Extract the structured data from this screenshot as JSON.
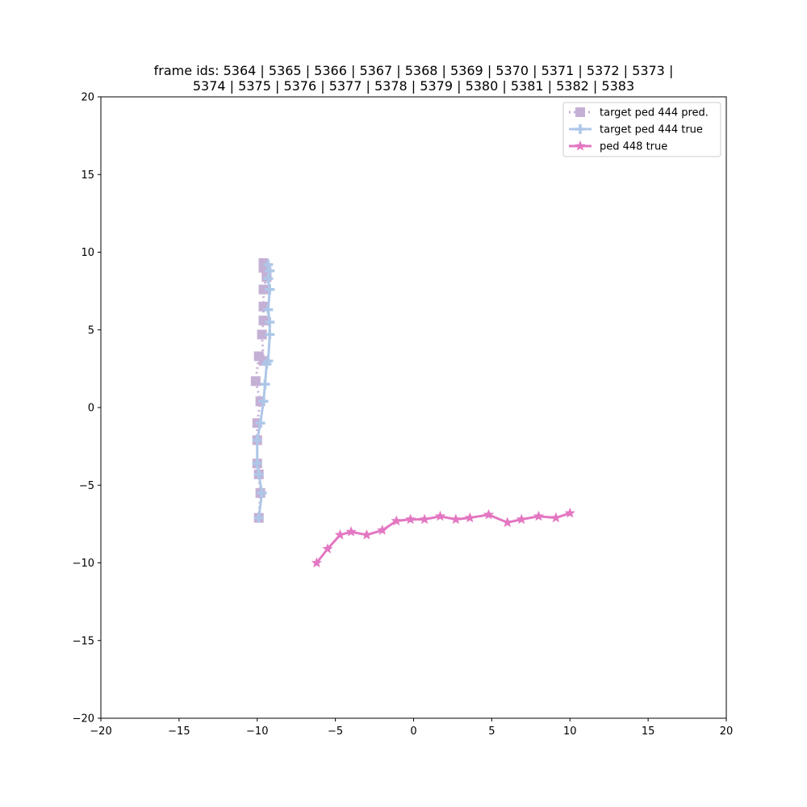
{
  "chart_data": {
    "type": "line",
    "title_lines": [
      "frame ids: 5364 | 5365 | 5366 | 5367 | 5368 | 5369 | 5370 | 5371 | 5372 | 5373 |",
      "5374 | 5375 | 5376 | 5377 | 5378 | 5379 | 5380 | 5381 | 5382 | 5383"
    ],
    "xlim": [
      -20,
      20
    ],
    "ylim": [
      -20,
      20
    ],
    "xticks": [
      -20,
      -15,
      -10,
      -5,
      0,
      5,
      10,
      15,
      20
    ],
    "yticks": [
      -20,
      -15,
      -10,
      -5,
      0,
      5,
      10,
      15,
      20
    ],
    "grid": false,
    "legend_position": "top-right",
    "series": [
      {
        "name": "target ped 444 pred.",
        "color": "#c5b0d5",
        "marker": "square",
        "linestyle": "dotted",
        "x": [
          -9.9,
          -9.8,
          -9.9,
          -10.0,
          -10.0,
          -10.0,
          -9.8,
          -10.1,
          -9.9,
          -9.6,
          -9.7,
          -9.6,
          -9.6,
          -9.6,
          -9.4,
          -9.4,
          -9.6,
          -9.6
        ],
        "y": [
          -7.1,
          -5.5,
          -4.3,
          -3.6,
          -2.1,
          -1.0,
          0.4,
          1.7,
          3.3,
          3.0,
          4.7,
          5.6,
          6.5,
          7.6,
          8.4,
          8.7,
          9.3,
          9.0
        ]
      },
      {
        "name": "target ped 444 true",
        "color": "#aec7e8",
        "marker": "plus",
        "linestyle": "solid",
        "x": [
          -9.9,
          -9.7,
          -9.9,
          -10.0,
          -10.0,
          -9.8,
          -9.6,
          -9.5,
          -9.4,
          -9.3,
          -9.2,
          -9.2,
          -9.3,
          -9.2,
          -9.2,
          -9.3,
          -9.2,
          -9.3
        ],
        "y": [
          -7.1,
          -5.5,
          -4.3,
          -3.6,
          -2.1,
          -1.0,
          0.4,
          1.5,
          2.8,
          3.0,
          4.7,
          5.5,
          6.3,
          7.6,
          7.6,
          8.3,
          8.8,
          9.2
        ]
      },
      {
        "name": "ped 448 true",
        "color": "#e377c2",
        "marker": "star",
        "linestyle": "solid",
        "x": [
          -6.2,
          -5.5,
          -4.7,
          -4.0,
          -3.0,
          -2.0,
          -1.1,
          -0.2,
          0.7,
          1.7,
          2.7,
          3.6,
          4.8,
          6.0,
          6.9,
          8.0,
          9.1,
          10.0
        ],
        "y": [
          -10.0,
          -9.1,
          -8.2,
          -8.0,
          -8.2,
          -7.9,
          -7.3,
          -7.2,
          -7.2,
          -7.0,
          -7.2,
          -7.1,
          -6.9,
          -7.4,
          -7.2,
          -7.0,
          -7.1,
          -6.8
        ]
      }
    ]
  }
}
